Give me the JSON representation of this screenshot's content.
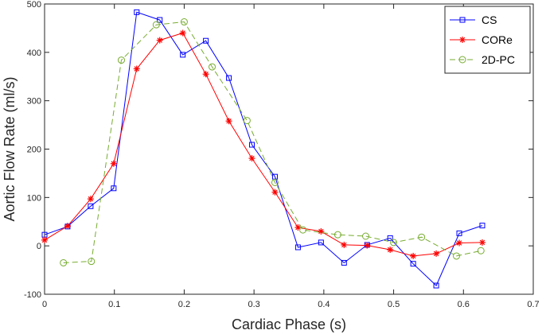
{
  "chart_data": {
    "type": "line",
    "title": "",
    "xlabel": "Cardiac Phase (s)",
    "ylabel": "Aortic Flow Rate (ml/s)",
    "xlim": [
      0,
      0.7
    ],
    "ylim": [
      -100,
      500
    ],
    "xticks": [
      0,
      0.1,
      0.2,
      0.3,
      0.4,
      0.5,
      0.6,
      0.7
    ],
    "yticks": [
      -100,
      0,
      100,
      200,
      300,
      400,
      500
    ],
    "xtick_labels": [
      "0",
      "0.1",
      "0.2",
      "0.3",
      "0.4",
      "0.5",
      "0.6",
      "0.7"
    ],
    "ytick_labels": [
      "-100",
      "0",
      "100",
      "200",
      "300",
      "400",
      "500"
    ],
    "grid": false,
    "legend_position": "top-right",
    "series": [
      {
        "name": "CS",
        "color": "#0000ff",
        "line_style": "solid",
        "marker": "square",
        "x": [
          0.0,
          0.033,
          0.066,
          0.099,
          0.132,
          0.165,
          0.198,
          0.231,
          0.264,
          0.297,
          0.33,
          0.363,
          0.396,
          0.429,
          0.462,
          0.495,
          0.528,
          0.561,
          0.594,
          0.627
        ],
        "y": [
          23,
          40,
          82,
          119,
          483,
          467,
          395,
          424,
          347,
          209,
          143,
          -3,
          7,
          -35,
          2,
          16,
          -37,
          -82,
          26,
          42
        ]
      },
      {
        "name": "CORe",
        "color": "#ff0000",
        "line_style": "solid",
        "marker": "asterisk",
        "x": [
          0.0,
          0.033,
          0.066,
          0.099,
          0.132,
          0.165,
          0.198,
          0.231,
          0.264,
          0.297,
          0.33,
          0.363,
          0.396,
          0.429,
          0.462,
          0.495,
          0.528,
          0.561,
          0.594,
          0.627
        ],
        "y": [
          12,
          41,
          97,
          170,
          366,
          425,
          440,
          355,
          258,
          181,
          111,
          38,
          30,
          2,
          1,
          -8,
          -21,
          -16,
          6,
          7
        ]
      },
      {
        "name": "2D-PC",
        "color": "#77ac30",
        "line_style": "dashed",
        "marker": "circle",
        "x": [
          0.027,
          0.067,
          0.11,
          0.16,
          0.2,
          0.24,
          0.29,
          0.33,
          0.37,
          0.42,
          0.46,
          0.5,
          0.54,
          0.59,
          0.625
        ],
        "y": [
          -35,
          -32,
          384,
          457,
          463,
          370,
          259,
          131,
          33,
          23,
          20,
          7,
          18,
          -21,
          -10
        ]
      }
    ]
  }
}
